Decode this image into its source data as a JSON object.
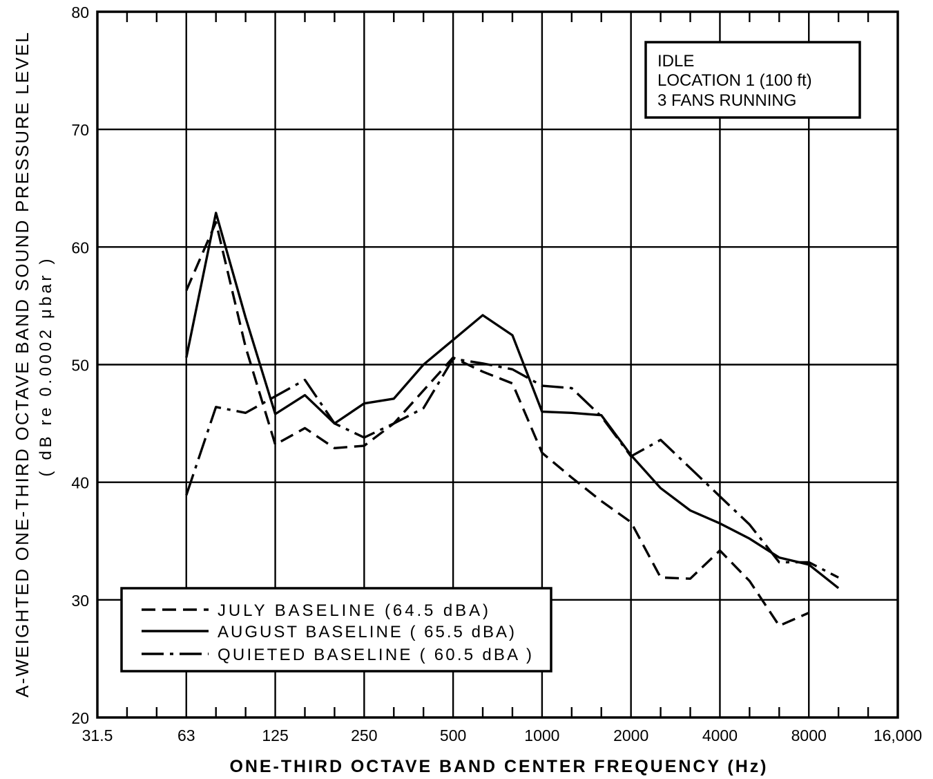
{
  "chart_data": {
    "type": "line",
    "xlabel": "ONE-THIRD OCTAVE BAND CENTER FREQUENCY (Hz)",
    "ylabel": "A-WEIGHTED ONE-THIRD OCTAVE BAND SOUND PRESSURE LEVEL",
    "ylabel_units": "( dB re 0.0002 μbar )",
    "xscale": "log",
    "xlim": [
      31.5,
      16000
    ],
    "ylim": [
      20,
      80
    ],
    "x_ticks": [
      31.5,
      63,
      125,
      250,
      500,
      1000,
      2000,
      4000,
      8000,
      16000
    ],
    "x_tick_labels": [
      "31.5",
      "63",
      "125",
      "250",
      "500",
      "1000",
      "2000",
      "4000",
      "8000",
      "16,000"
    ],
    "y_ticks": [
      20,
      30,
      40,
      50,
      60,
      70,
      80
    ],
    "y_tick_labels": [
      "20",
      "30",
      "40",
      "50",
      "60",
      "70",
      "80"
    ],
    "grid": true,
    "legend_position": "bottom-left",
    "colors": {
      "lines": "#000000",
      "background": "#ffffff"
    },
    "series": [
      {
        "name": "JULY BASELINE (64.5 dBA)",
        "line_style": "dashed",
        "x": [
          63,
          80,
          100,
          125,
          160,
          200,
          250,
          315,
          400,
          500,
          630,
          800,
          1000,
          1250,
          1600,
          2000,
          2500,
          3150,
          4000,
          5000,
          6300,
          8000
        ],
        "y": [
          56.3,
          62.1,
          51.5,
          43.2,
          44.6,
          42.9,
          43.1,
          45.0,
          47.8,
          50.6,
          49.4,
          48.4,
          42.5,
          40.4,
          38.4,
          36.6,
          31.9,
          31.8,
          34.2,
          31.6,
          27.8,
          28.9
        ]
      },
      {
        "name": "AUGUST BASELINE ( 65.5 dBA)",
        "line_style": "solid",
        "x": [
          63,
          80,
          100,
          125,
          160,
          200,
          250,
          315,
          400,
          500,
          630,
          800,
          1000,
          1250,
          1600,
          2000,
          2500,
          3150,
          4000,
          5000,
          6300,
          8000,
          10000
        ],
        "y": [
          50.6,
          62.9,
          54.0,
          45.8,
          47.4,
          45.0,
          46.7,
          47.1,
          50.0,
          52.1,
          54.2,
          52.5,
          46.0,
          45.9,
          45.7,
          42.3,
          39.5,
          37.6,
          36.5,
          35.2,
          33.6,
          33.0,
          31.0
        ]
      },
      {
        "name": "QUIETED BASELINE ( 60.5 dBA )",
        "line_style": "dash-dot",
        "x": [
          63,
          80,
          100,
          125,
          160,
          200,
          250,
          315,
          400,
          500,
          630,
          800,
          1000,
          1250,
          1600,
          2000,
          2500,
          3150,
          4000,
          5000,
          6300,
          8000,
          10000
        ],
        "y": [
          38.9,
          46.4,
          45.9,
          47.3,
          48.7,
          45.0,
          43.8,
          45.0,
          46.3,
          50.5,
          50.1,
          49.6,
          48.2,
          48.0,
          45.6,
          42.2,
          43.6,
          41.2,
          38.8,
          36.4,
          33.2,
          33.2,
          31.9
        ]
      }
    ],
    "annotation": {
      "position": "top-right",
      "lines": [
        "IDLE",
        "LOCATION 1 (100 ft)",
        "3 FANS RUNNING"
      ]
    }
  }
}
